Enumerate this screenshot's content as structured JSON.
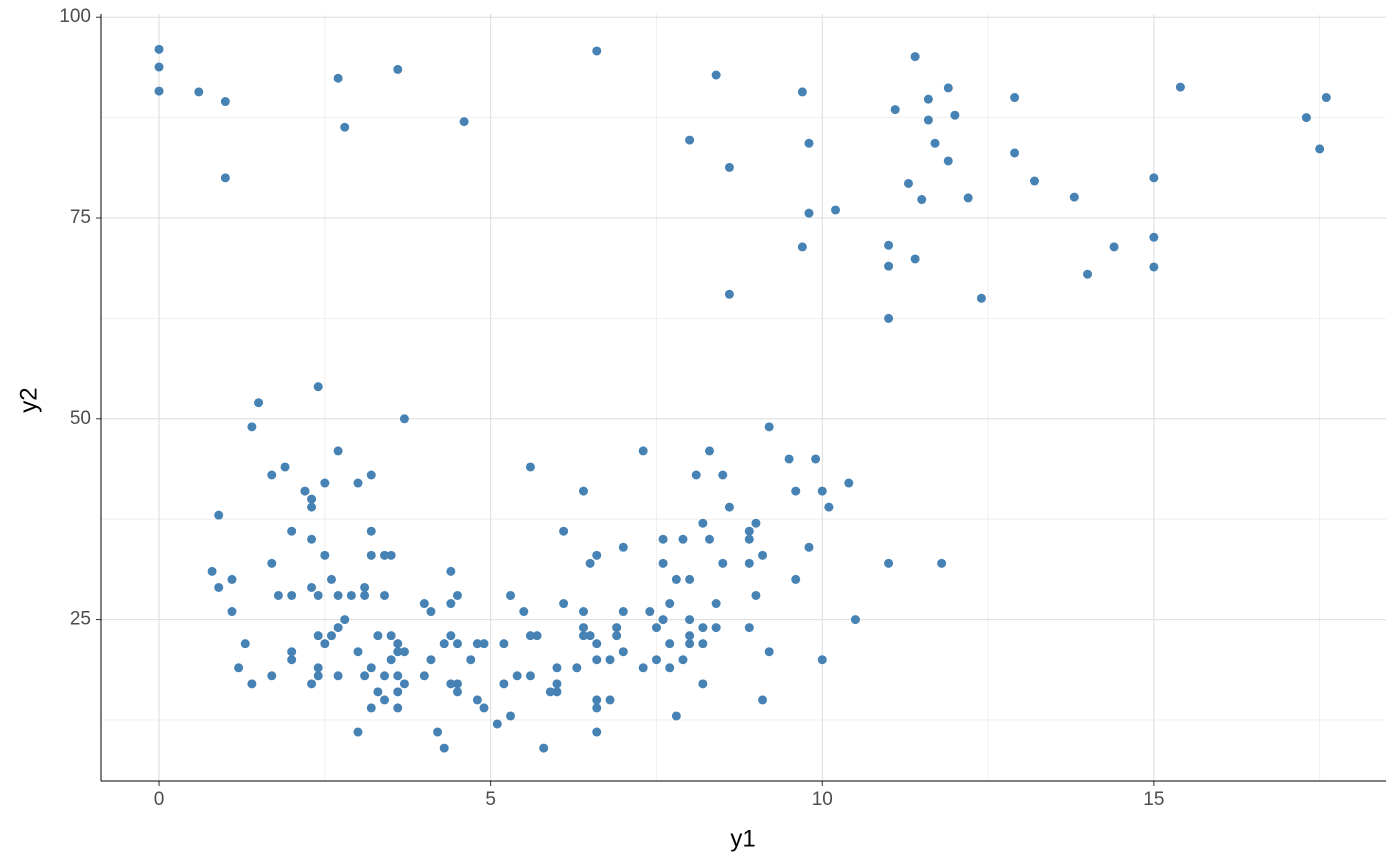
{
  "chart_data": {
    "type": "scatter",
    "x_label": "y1",
    "y_label": "y2",
    "color": "#4682b4",
    "grid": true,
    "xlim": [
      -0.875,
      18.5
    ],
    "ylim": [
      4.9,
      100.4
    ],
    "xticks": [
      0,
      5,
      10,
      15
    ],
    "yticks": [
      25,
      50,
      75,
      100
    ],
    "x_minor_grid": [
      2.5,
      7.5,
      12.5,
      17.5
    ],
    "y_minor_grid": [
      12.5,
      37.5,
      62.5,
      87.5
    ],
    "x": [
      0,
      0,
      0,
      0.6,
      1.0,
      1.0,
      2.7,
      2.8,
      3.6,
      4.6,
      6.6,
      8.4,
      8.0,
      8.6,
      9.7,
      9.8,
      9.8,
      9.7,
      8.6,
      10.2,
      11.4,
      11.1,
      11.6,
      11.9,
      11.6,
      12.0,
      11.7,
      11.9,
      11.3,
      11.5,
      12.2,
      11.0,
      11.0,
      11.4,
      11.0,
      12.4,
      12.9,
      12.9,
      13.2,
      13.8,
      14.4,
      14.0,
      15.0,
      15.0,
      15.0,
      15.4,
      17.3,
      17.5,
      17.6,
      2.4,
      1.5,
      3.7,
      1.4,
      2.7,
      1.7,
      1.9,
      3.2,
      3.0,
      2.5,
      2.2,
      2.3,
      2.3,
      0.9,
      2.0,
      3.2,
      2.3,
      1.7,
      3.2,
      2.5,
      3.4,
      3.5,
      0.8,
      2.6,
      1.1,
      0.9,
      2.3,
      3.1,
      1.8,
      2.0,
      2.4,
      2.7,
      2.9,
      3.1,
      3.4,
      1.1,
      2.8,
      2.7,
      2.4,
      2.6,
      3.3,
      3.5,
      1.3,
      2.5,
      3.6,
      2.0,
      3.0,
      3.6,
      3.7,
      2.0,
      3.5,
      1.2,
      2.4,
      3.2,
      1.7,
      2.4,
      2.7,
      3.1,
      3.4,
      3.6,
      1.4,
      2.3,
      3.7,
      3.3,
      3.6,
      3.4,
      3.2,
      3.6,
      3.0,
      4.0,
      4.1,
      4.4,
      4.4,
      4.5,
      4.4,
      4.3,
      4.5,
      4.1,
      4.0,
      4.4,
      4.5,
      4.5,
      4.7,
      4.8,
      4.9,
      4.8,
      4.9,
      4.2,
      4.3,
      5.1,
      5.2,
      5.2,
      5.3,
      5.3,
      5.4,
      5.5,
      5.6,
      5.7,
      5.6,
      5.6,
      5.8,
      5.9,
      6.0,
      6.0,
      6.0,
      6.1,
      6.1,
      6.3,
      6.4,
      6.4,
      6.4,
      6.4,
      6.5,
      6.5,
      6.6,
      6.6,
      6.6,
      6.6,
      6.6,
      6.6,
      6.8,
      6.8,
      6.9,
      6.9,
      7.0,
      7.0,
      7.0,
      7.3,
      7.3,
      7.4,
      7.5,
      7.5,
      7.6,
      7.6,
      7.6,
      7.7,
      7.7,
      7.7,
      7.8,
      7.8,
      7.9,
      7.9,
      8.0,
      8.0,
      8.0,
      8.0,
      8.1,
      8.2,
      8.2,
      8.2,
      8.2,
      8.3,
      8.3,
      8.4,
      8.4,
      8.5,
      8.5,
      8.6,
      8.9,
      8.9,
      8.9,
      8.9,
      9.0,
      9.0,
      9.1,
      9.1,
      9.2,
      9.2,
      9.5,
      9.6,
      9.6,
      9.8,
      9.9,
      10.0,
      10.0,
      10.1,
      10.4,
      10.5,
      11.0,
      11.8
    ],
    "values": [
      96,
      93.8,
      90.8,
      90.7,
      89.5,
      80,
      92.4,
      86.3,
      93.5,
      87,
      95.8,
      92.8,
      84.7,
      81.3,
      90.7,
      84.3,
      75.6,
      71.4,
      65.5,
      76,
      95.1,
      88.5,
      89.8,
      91.2,
      87.2,
      87.8,
      84.3,
      82.1,
      79.3,
      77.3,
      77.5,
      71.6,
      69,
      69.9,
      62.5,
      65,
      90,
      83.1,
      79.6,
      77.6,
      71.4,
      68,
      80,
      72.6,
      68.9,
      91.3,
      87.5,
      83.6,
      90,
      54,
      52,
      50,
      49,
      46,
      43,
      44,
      43,
      42,
      42,
      41,
      40,
      39,
      38,
      36,
      36,
      35,
      32,
      33,
      33,
      33,
      33,
      31,
      30,
      30,
      29,
      29,
      29,
      28,
      28,
      28,
      28,
      28,
      28,
      28,
      26,
      25,
      24,
      23,
      23,
      23,
      23,
      22,
      22,
      22,
      21,
      21,
      21,
      21,
      20,
      20,
      19,
      19,
      19,
      18,
      18,
      18,
      18,
      18,
      18,
      17,
      17,
      17,
      16,
      16,
      15,
      14,
      14,
      11,
      27,
      26,
      31,
      27,
      28,
      23,
      22,
      22,
      20,
      18,
      17,
      17,
      16,
      20,
      22,
      22,
      15,
      14,
      11,
      9,
      12,
      22,
      17,
      28,
      13,
      18,
      26,
      23,
      23,
      18,
      44,
      9,
      16,
      16,
      17,
      19,
      27,
      36,
      19,
      41,
      26,
      24,
      23,
      32,
      23,
      33,
      22,
      20,
      15,
      14,
      11,
      20,
      15,
      24,
      23,
      34,
      26,
      21,
      46,
      19,
      26,
      24,
      20,
      35,
      32,
      25,
      27,
      22,
      19,
      30,
      13,
      35,
      20,
      30,
      25,
      23,
      22,
      43,
      37,
      24,
      22,
      17,
      46,
      35,
      27,
      24,
      43,
      32,
      39,
      36,
      35,
      32,
      24,
      37,
      28,
      33,
      15,
      49,
      21,
      45,
      41,
      30,
      34,
      45,
      41,
      20,
      39,
      42,
      25,
      32,
      32
    ]
  }
}
